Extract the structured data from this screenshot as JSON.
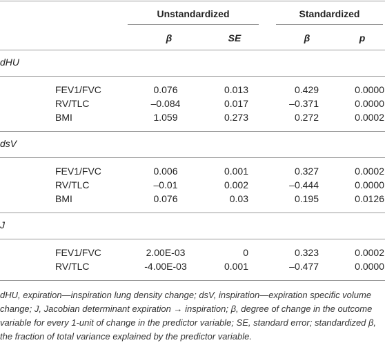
{
  "table": {
    "group_headers": [
      "Unstandardized",
      "Standardized"
    ],
    "column_headers": [
      "β",
      "SE",
      "β",
      "p"
    ],
    "sections": [
      {
        "label": "dHU",
        "rows": [
          [
            "FEV1/FVC",
            "0.076",
            "0.013",
            "0.429",
            "0.0000"
          ],
          [
            "RV/TLC",
            "–0.084",
            "0.017",
            "–0.371",
            "0.0000"
          ],
          [
            "BMI",
            "1.059",
            "0.273",
            "0.272",
            "0.0002"
          ]
        ]
      },
      {
        "label": "dsV",
        "rows": [
          [
            "FEV1/FVC",
            "0.006",
            "0.001",
            "0.327",
            "0.0002"
          ],
          [
            "RV/TLC",
            "–0.01",
            "0.002",
            "–0.444",
            "0.0000"
          ],
          [
            "BMI",
            "0.076",
            "0.03",
            "0.195",
            "0.0126"
          ]
        ]
      },
      {
        "label": "J",
        "rows": [
          [
            "FEV1/FVC",
            "2.00E-03",
            "0",
            "0.323",
            "0.0002"
          ],
          [
            "RV/TLC",
            "-4.00E-03",
            "0.001",
            "–0.477",
            "0.0000"
          ]
        ]
      }
    ]
  },
  "footnote": "dHU, expiration—inspiration lung density change; dsV, inspiration—expiration specific volume change; J, Jacobian determinant expiration → inspiration; β, degree of change in the outcome variable for every 1-unit of change in the predictor variable; SE, standard error; standardized β, the fraction of total variance explained by the predictor variable."
}
